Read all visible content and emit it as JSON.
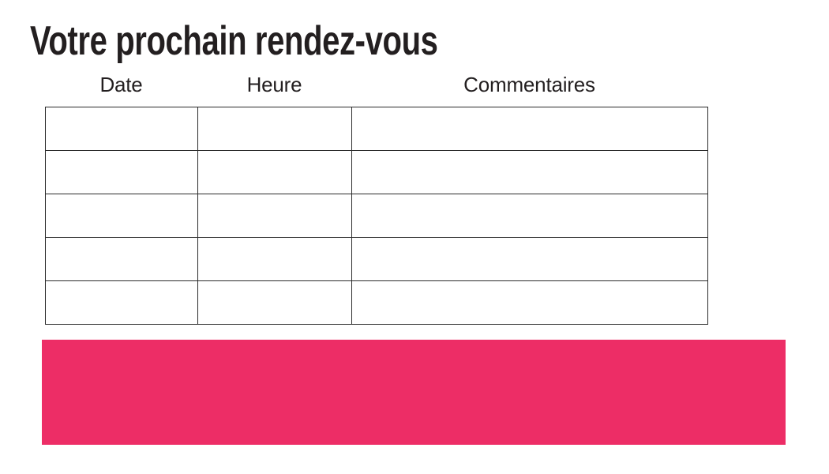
{
  "page": {
    "title": "Votre prochain rendez-vous"
  },
  "appointments": {
    "columns": [
      {
        "label": "Date"
      },
      {
        "label": "Heure"
      },
      {
        "label": "Commentaires"
      }
    ],
    "rows": [
      [
        "",
        "",
        ""
      ],
      [
        "",
        "",
        ""
      ],
      [
        "",
        "",
        ""
      ],
      [
        "",
        "",
        ""
      ],
      [
        "",
        "",
        ""
      ]
    ]
  },
  "banner": {
    "color": "#ED2D66"
  },
  "colors": {
    "title_text": "#231f20",
    "header_text": "#231f20",
    "table_border": "#2b2b2b",
    "background": "#ffffff"
  }
}
